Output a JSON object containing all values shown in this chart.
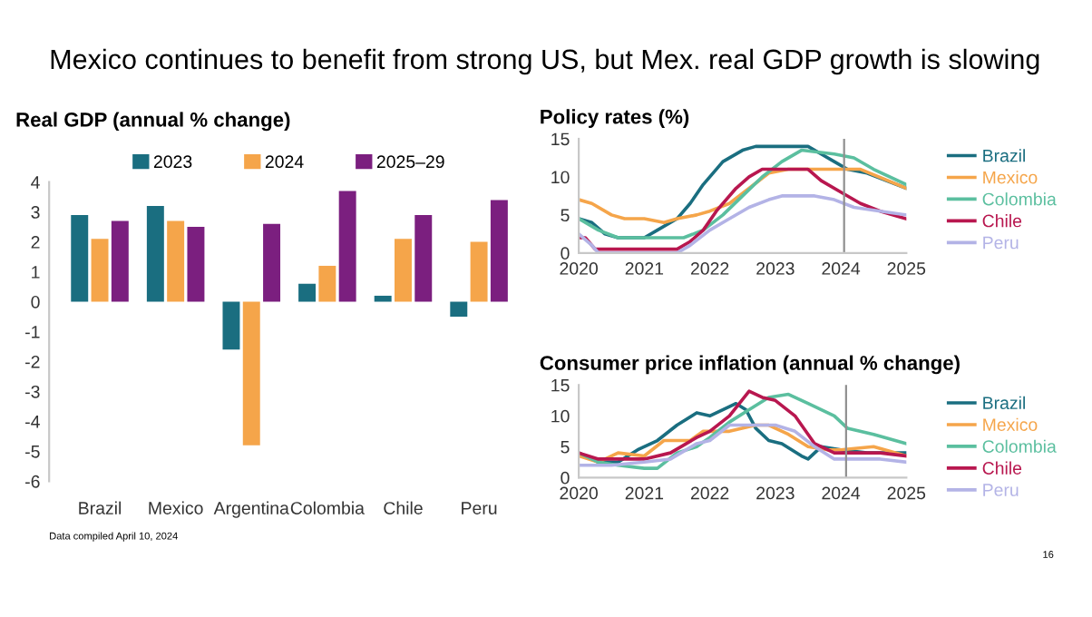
{
  "chart_data": [
    {
      "type": "bar",
      "title": "Real GDP (annual % change)",
      "annotations": [
        "Mexico continues to benefit from strong US, but Mex. real GDP growth is slowing",
        "Data compiled April 10, 2024",
        "16"
      ],
      "categories": [
        "Brazil",
        "Mexico",
        "Argentina",
        "Colombia",
        "Chile",
        "Peru"
      ],
      "series": [
        {
          "name": "2023",
          "color": "#1a6e80",
          "values": [
            2.9,
            3.2,
            -1.6,
            0.6,
            0.2,
            -0.5
          ]
        },
        {
          "name": "2024",
          "color": "#f5a54a",
          "values": [
            2.1,
            2.7,
            -4.8,
            1.2,
            2.1,
            2.0
          ]
        },
        {
          "name": "2025–29",
          "color": "#7b1f7f",
          "values": [
            2.7,
            2.5,
            2.6,
            3.7,
            2.9,
            3.4
          ]
        }
      ],
      "ylim": [
        -6,
        4
      ],
      "yticks": [
        -6,
        -5,
        -4,
        -3,
        -2,
        -1,
        0,
        1,
        2,
        3,
        4
      ],
      "legend": "top"
    },
    {
      "type": "line",
      "title": "Policy rates (%)",
      "xlim": [
        2020,
        2025
      ],
      "xticks": [
        2020,
        2021,
        2022,
        2023,
        2024,
        2025
      ],
      "ylim": [
        0,
        15
      ],
      "yticks": [
        0,
        5,
        10,
        15
      ],
      "legend": "right",
      "marker": "none",
      "line_style": "solid",
      "ref_lines": [
        {
          "axis": "x",
          "value": 2024.05,
          "color": "#909090"
        }
      ],
      "series": [
        {
          "name": "Brazil",
          "color": "#1a6e80",
          "x": [
            2020,
            2020.2,
            2020.4,
            2020.6,
            2021.0,
            2021.2,
            2021.5,
            2021.7,
            2021.9,
            2022.2,
            2022.5,
            2022.7,
            2023.5,
            2023.7,
            2023.9,
            2024.1,
            2024.4,
            2025
          ],
          "values": [
            4.5,
            4,
            2.5,
            2,
            2,
            3,
            4.5,
            6.5,
            9,
            12,
            13.5,
            14,
            14,
            13,
            12,
            11,
            10.5,
            8.5
          ]
        },
        {
          "name": "Mexico",
          "color": "#f5a54a",
          "x": [
            2020,
            2020.2,
            2020.5,
            2020.7,
            2021.0,
            2021.3,
            2021.5,
            2021.8,
            2022.0,
            2022.3,
            2022.6,
            2022.9,
            2023.2,
            2024.0,
            2024.3,
            2025
          ],
          "values": [
            7,
            6.5,
            5,
            4.5,
            4.5,
            4,
            4.5,
            5,
            5.5,
            6.5,
            8.5,
            10.5,
            11,
            11,
            11,
            8.5
          ]
        },
        {
          "name": "Colombia",
          "color": "#5bbf9f",
          "x": [
            2020,
            2020.3,
            2020.6,
            2021.0,
            2021.6,
            2021.9,
            2022.2,
            2022.5,
            2022.8,
            2023.1,
            2023.4,
            2023.9,
            2024.2,
            2024.5,
            2025
          ],
          "values": [
            4.5,
            3,
            2,
            2,
            2,
            3,
            5,
            7.5,
            10,
            12,
            13.5,
            13,
            12.5,
            11,
            9
          ]
        },
        {
          "name": "Chile",
          "color": "#b8174f",
          "x": [
            2020,
            2020.1,
            2020.25,
            2021.5,
            2021.7,
            2021.9,
            2022.1,
            2022.4,
            2022.6,
            2022.8,
            2023.5,
            2023.7,
            2024.0,
            2024.3,
            2024.6,
            2025
          ],
          "values": [
            2,
            2,
            0.5,
            0.5,
            1.5,
            3,
            5.5,
            8.5,
            10,
            11,
            11,
            9.5,
            8,
            6.5,
            5.5,
            4.5
          ]
        },
        {
          "name": "Peru",
          "color": "#b3b3e6",
          "x": [
            2020,
            2020.2,
            2020.3,
            2021.5,
            2021.7,
            2022.0,
            2022.3,
            2022.6,
            2022.9,
            2023.1,
            2023.6,
            2023.9,
            2024.2,
            2024.6,
            2025
          ],
          "values": [
            2.5,
            1,
            0,
            0,
            1,
            3,
            4.5,
            6,
            7,
            7.5,
            7.5,
            7,
            6,
            5.5,
            5
          ]
        }
      ]
    },
    {
      "type": "line",
      "title": "Consumer price inflation (annual % change)",
      "xlim": [
        2020,
        2025
      ],
      "xticks": [
        2020,
        2021,
        2022,
        2023,
        2024,
        2025
      ],
      "ylim": [
        0,
        15
      ],
      "yticks": [
        0,
        5,
        10,
        15
      ],
      "legend": "right",
      "marker": "none",
      "line_style": "solid",
      "ref_lines": [
        {
          "axis": "x",
          "value": 2024.08,
          "color": "#909090"
        }
      ],
      "series": [
        {
          "name": "Brazil",
          "color": "#1a6e80",
          "x": [
            2020,
            2020.3,
            2020.6,
            2020.9,
            2021.2,
            2021.5,
            2021.8,
            2022.0,
            2022.3,
            2022.4,
            2022.55,
            2022.7,
            2022.9,
            2023.1,
            2023.4,
            2023.5,
            2023.7,
            2024.0,
            2024.4,
            2025
          ],
          "values": [
            4,
            2.5,
            2.5,
            4.5,
            6,
            8.5,
            10.5,
            10,
            11.5,
            12,
            11,
            8,
            6,
            5.5,
            3.5,
            3,
            5,
            4.5,
            4,
            4
          ]
        },
        {
          "name": "Mexico",
          "color": "#f5a54a",
          "x": [
            2020,
            2020.3,
            2020.6,
            2021.0,
            2021.3,
            2021.7,
            2021.9,
            2022.3,
            2022.7,
            2022.9,
            2023.2,
            2023.5,
            2023.8,
            2024.0,
            2024.5,
            2025
          ],
          "values": [
            3.5,
            2.5,
            4,
            3.5,
            6,
            6,
            7.5,
            7.5,
            8.5,
            8.5,
            7,
            5,
            4.5,
            4.5,
            5,
            3.5
          ]
        },
        {
          "name": "Colombia",
          "color": "#5bbf9f",
          "x": [
            2020,
            2020.3,
            2020.6,
            2021.0,
            2021.2,
            2021.5,
            2021.8,
            2022.0,
            2022.3,
            2022.6,
            2022.9,
            2023.2,
            2023.5,
            2023.9,
            2024.1,
            2024.5,
            2025
          ],
          "values": [
            4,
            2.5,
            2,
            1.5,
            1.5,
            4,
            5,
            6.5,
            9,
            11,
            13,
            13.5,
            12,
            10,
            8,
            7,
            5.5
          ]
        },
        {
          "name": "Chile",
          "color": "#b8174f",
          "x": [
            2020,
            2020.3,
            2020.6,
            2021.0,
            2021.4,
            2021.8,
            2022.0,
            2022.3,
            2022.6,
            2022.8,
            2023.0,
            2023.3,
            2023.6,
            2023.9,
            2024.2,
            2024.6,
            2025
          ],
          "values": [
            4,
            3,
            3,
            3,
            4,
            6.5,
            7.5,
            10,
            14,
            13,
            12.5,
            10,
            5.5,
            4,
            4,
            4,
            3.5
          ]
        },
        {
          "name": "Peru",
          "color": "#b3b3e6",
          "x": [
            2020,
            2020.5,
            2021.0,
            2021.4,
            2021.8,
            2022.0,
            2022.3,
            2022.6,
            2023.0,
            2023.3,
            2023.6,
            2023.9,
            2024.2,
            2024.6,
            2025
          ],
          "values": [
            2,
            2,
            2.5,
            3,
            5.5,
            6,
            8.5,
            8.5,
            8.5,
            7.5,
            5,
            3,
            3,
            3,
            2.5
          ]
        }
      ]
    }
  ]
}
